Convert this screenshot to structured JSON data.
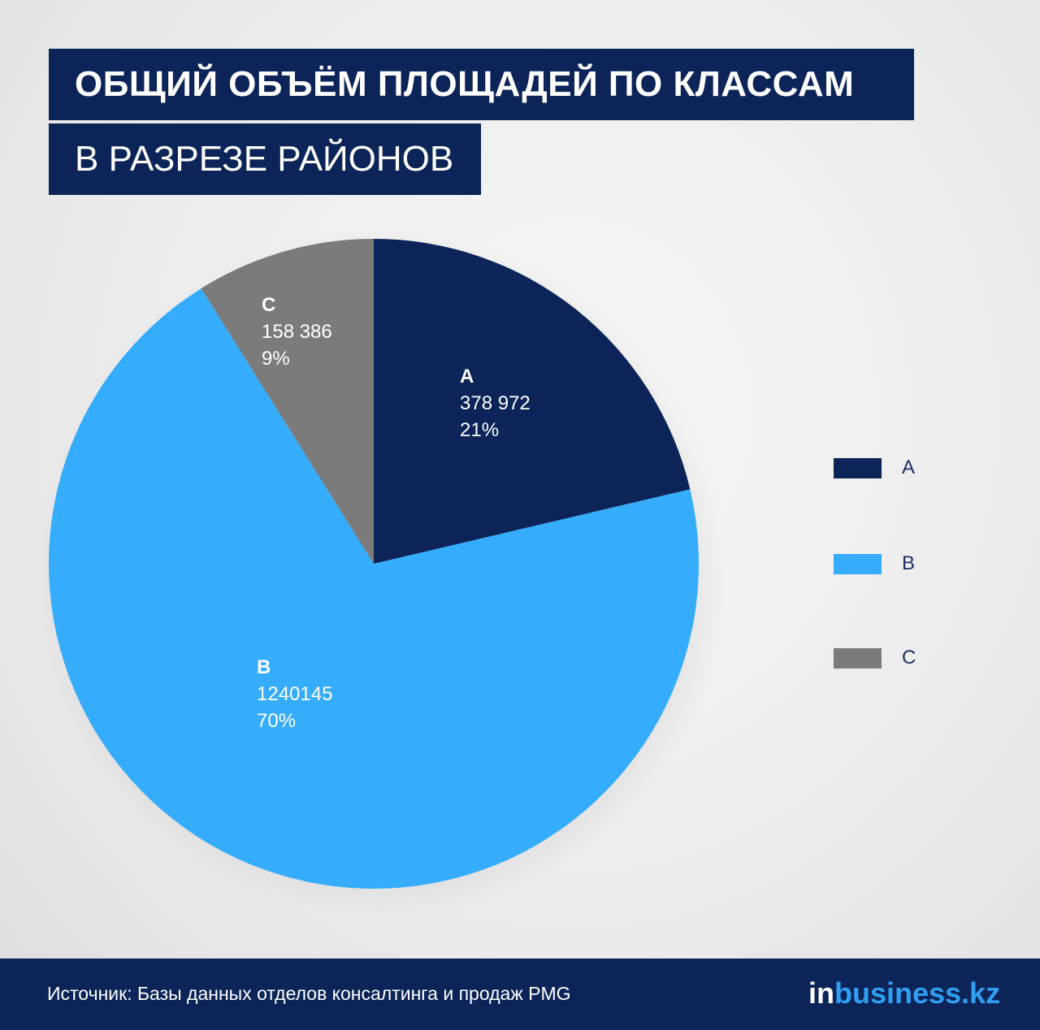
{
  "header": {
    "title": "ОБЩИЙ ОБЪЁМ ПЛОЩАДЕЙ ПО КЛАССАМ",
    "subtitle": "В РАЗРЕЗЕ РАЙОНОВ"
  },
  "chart_data": {
    "type": "pie",
    "title": "ОБЩИЙ ОБЪЁМ ПЛОЩАДЕЙ ПО КЛАССАМ",
    "subtitle": "В РАЗРЕЗЕ РАЙОНОВ",
    "slices": [
      {
        "label": "A",
        "value": 378972,
        "value_text": "378 972",
        "percent": 21,
        "percent_text": "21%",
        "color": "#0c2458"
      },
      {
        "label": "B",
        "value": 1240145,
        "value_text": "1240145",
        "percent": 70,
        "percent_text": "70%",
        "color": "#35acfc"
      },
      {
        "label": "C",
        "value": 158386,
        "value_text": "158 386",
        "percent": 9,
        "percent_text": "9%",
        "color": "#7b7b7b"
      }
    ],
    "start": "12 o'clock",
    "direction": "clockwise",
    "legend_position": "right"
  },
  "legend": {
    "items": [
      "A",
      "B",
      "C"
    ]
  },
  "footer": {
    "source": "Источник: Базы данных отделов консалтинга и продаж PMG",
    "logo_in": "in",
    "logo_rest": "business.kz"
  }
}
